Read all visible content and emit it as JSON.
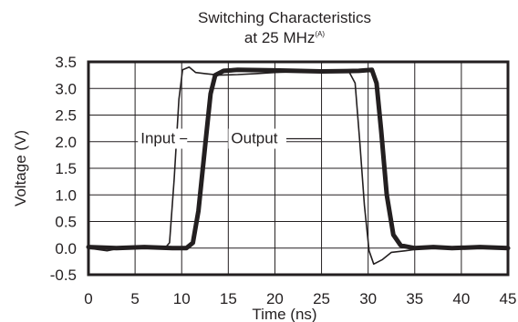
{
  "chart_data": {
    "type": "line",
    "title": "Switching Characteristics",
    "subtitle": "at 25 MHz",
    "subtitle_sup": "(A)",
    "xlabel": "Time (ns)",
    "ylabel": "Voltage (V)",
    "xlim": [
      0,
      45
    ],
    "ylim": [
      -0.5,
      3.5
    ],
    "x_ticks": [
      0,
      5,
      10,
      15,
      20,
      25,
      30,
      35,
      40,
      45
    ],
    "y_ticks": [
      3.5,
      3.0,
      2.5,
      2.0,
      1.5,
      1.0,
      0.5,
      0.0,
      -0.5
    ],
    "y_tick_labels": [
      "3.5",
      "3.0",
      "2.5",
      "2.0",
      "1.5",
      "1.0",
      "0.5",
      "0.0",
      "-0.5"
    ],
    "grid": true,
    "series": [
      {
        "name": "Input",
        "style": "thin",
        "color": "#231f20",
        "points": [
          [
            0,
            0.0
          ],
          [
            2,
            -0.05
          ],
          [
            4,
            0.02
          ],
          [
            6,
            0.0
          ],
          [
            8.2,
            0.0
          ],
          [
            8.7,
            0.1
          ],
          [
            9.2,
            1.3
          ],
          [
            9.7,
            2.8
          ],
          [
            10.1,
            3.35
          ],
          [
            10.8,
            3.4
          ],
          [
            11.5,
            3.3
          ],
          [
            12.5,
            3.28
          ],
          [
            14,
            3.25
          ],
          [
            16,
            3.26
          ],
          [
            18,
            3.28
          ],
          [
            20,
            3.3
          ],
          [
            23,
            3.32
          ],
          [
            26,
            3.3
          ],
          [
            28,
            3.3
          ],
          [
            28.6,
            3.1
          ],
          [
            29.1,
            2.0
          ],
          [
            29.6,
            0.8
          ],
          [
            30.1,
            -0.05
          ],
          [
            30.6,
            -0.3
          ],
          [
            31.5,
            -0.22
          ],
          [
            32.5,
            -0.08
          ],
          [
            34,
            -0.05
          ],
          [
            36,
            0.0
          ],
          [
            38,
            0.02
          ],
          [
            40,
            0.03
          ],
          [
            42,
            0.02
          ],
          [
            45,
            0.02
          ]
        ]
      },
      {
        "name": "Output",
        "style": "thick",
        "color": "#231f20",
        "points": [
          [
            0,
            0.02
          ],
          [
            3,
            0.0
          ],
          [
            6,
            0.02
          ],
          [
            9,
            0.0
          ],
          [
            10.5,
            0.0
          ],
          [
            11.2,
            0.1
          ],
          [
            11.8,
            0.7
          ],
          [
            12.5,
            1.9
          ],
          [
            13.1,
            2.9
          ],
          [
            13.6,
            3.25
          ],
          [
            14.5,
            3.33
          ],
          [
            16,
            3.35
          ],
          [
            20,
            3.34
          ],
          [
            25,
            3.32
          ],
          [
            29,
            3.33
          ],
          [
            30.4,
            3.35
          ],
          [
            30.9,
            3.1
          ],
          [
            31.4,
            2.2
          ],
          [
            32,
            1.0
          ],
          [
            32.7,
            0.25
          ],
          [
            33.5,
            0.05
          ],
          [
            35,
            0.0
          ],
          [
            37,
            0.02
          ],
          [
            39,
            0.0
          ],
          [
            42,
            0.02
          ],
          [
            45,
            0.0
          ]
        ]
      }
    ],
    "annotations": [
      {
        "text": "Input",
        "x": 5.6,
        "y": 1.97,
        "pointer_to": 9.8
      },
      {
        "text": "Output",
        "x": 15.3,
        "y": 1.97,
        "pointer_to": 25.0
      }
    ]
  }
}
